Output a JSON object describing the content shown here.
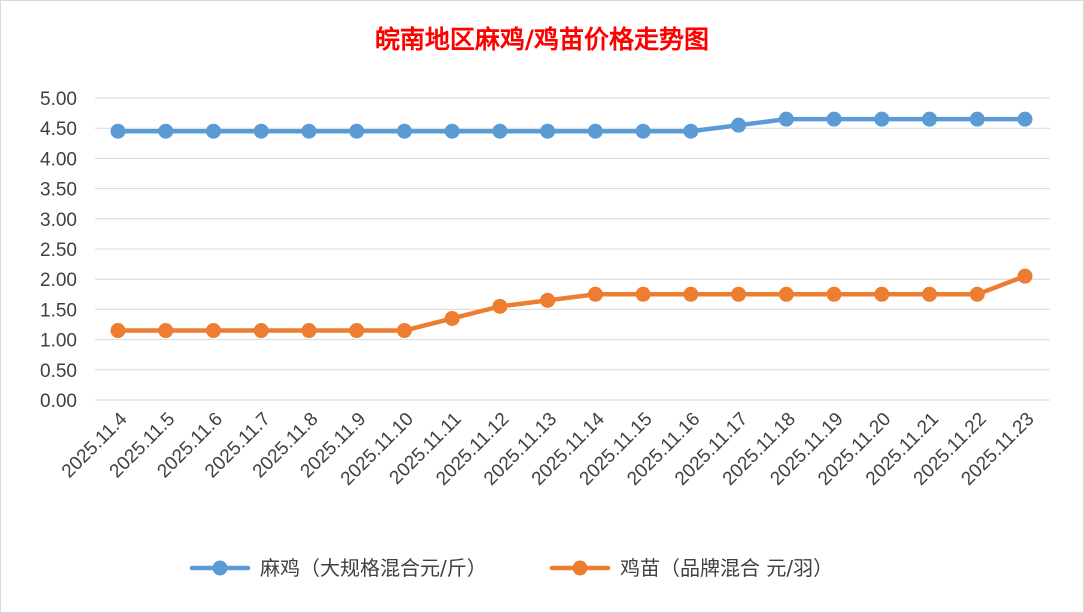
{
  "chart_data": {
    "type": "line",
    "title": "皖南地区麻鸡/鸡苗价格走势图",
    "xlabel": "",
    "ylabel": "",
    "categories": [
      "2025.11.4",
      "2025.11.5",
      "2025.11.6",
      "2025.11.7",
      "2025.11.8",
      "2025.11.9",
      "2025.11.10",
      "2025.11.11",
      "2025.11.12",
      "2025.11.13",
      "2025.11.14",
      "2025.11.15",
      "2025.11.16",
      "2025.11.17",
      "2025.11.18",
      "2025.11.19",
      "2025.11.20",
      "2025.11.21",
      "2025.11.22",
      "2025.11.23"
    ],
    "ylim": [
      0,
      5
    ],
    "yticks": [
      "0.00",
      "0.50",
      "1.00",
      "1.50",
      "2.00",
      "2.50",
      "3.00",
      "3.50",
      "4.00",
      "4.50",
      "5.00"
    ],
    "grid": true,
    "legend_position": "bottom",
    "series": [
      {
        "name": "麻鸡（大规格混合元/斤）",
        "color": "#5b9bd5",
        "values": [
          4.45,
          4.45,
          4.45,
          4.45,
          4.45,
          4.45,
          4.45,
          4.45,
          4.45,
          4.45,
          4.45,
          4.45,
          4.45,
          4.55,
          4.65,
          4.65,
          4.65,
          4.65,
          4.65,
          4.65
        ]
      },
      {
        "name": "鸡苗（品牌混合 元/羽）",
        "color": "#ed7d31",
        "values": [
          1.15,
          1.15,
          1.15,
          1.15,
          1.15,
          1.15,
          1.15,
          1.35,
          1.55,
          1.65,
          1.75,
          1.75,
          1.75,
          1.75,
          1.75,
          1.75,
          1.75,
          1.75,
          1.75,
          2.05
        ]
      }
    ]
  },
  "colors": {
    "title": "#ff0000",
    "grid": "#d9d9d9",
    "text": "#404040"
  }
}
